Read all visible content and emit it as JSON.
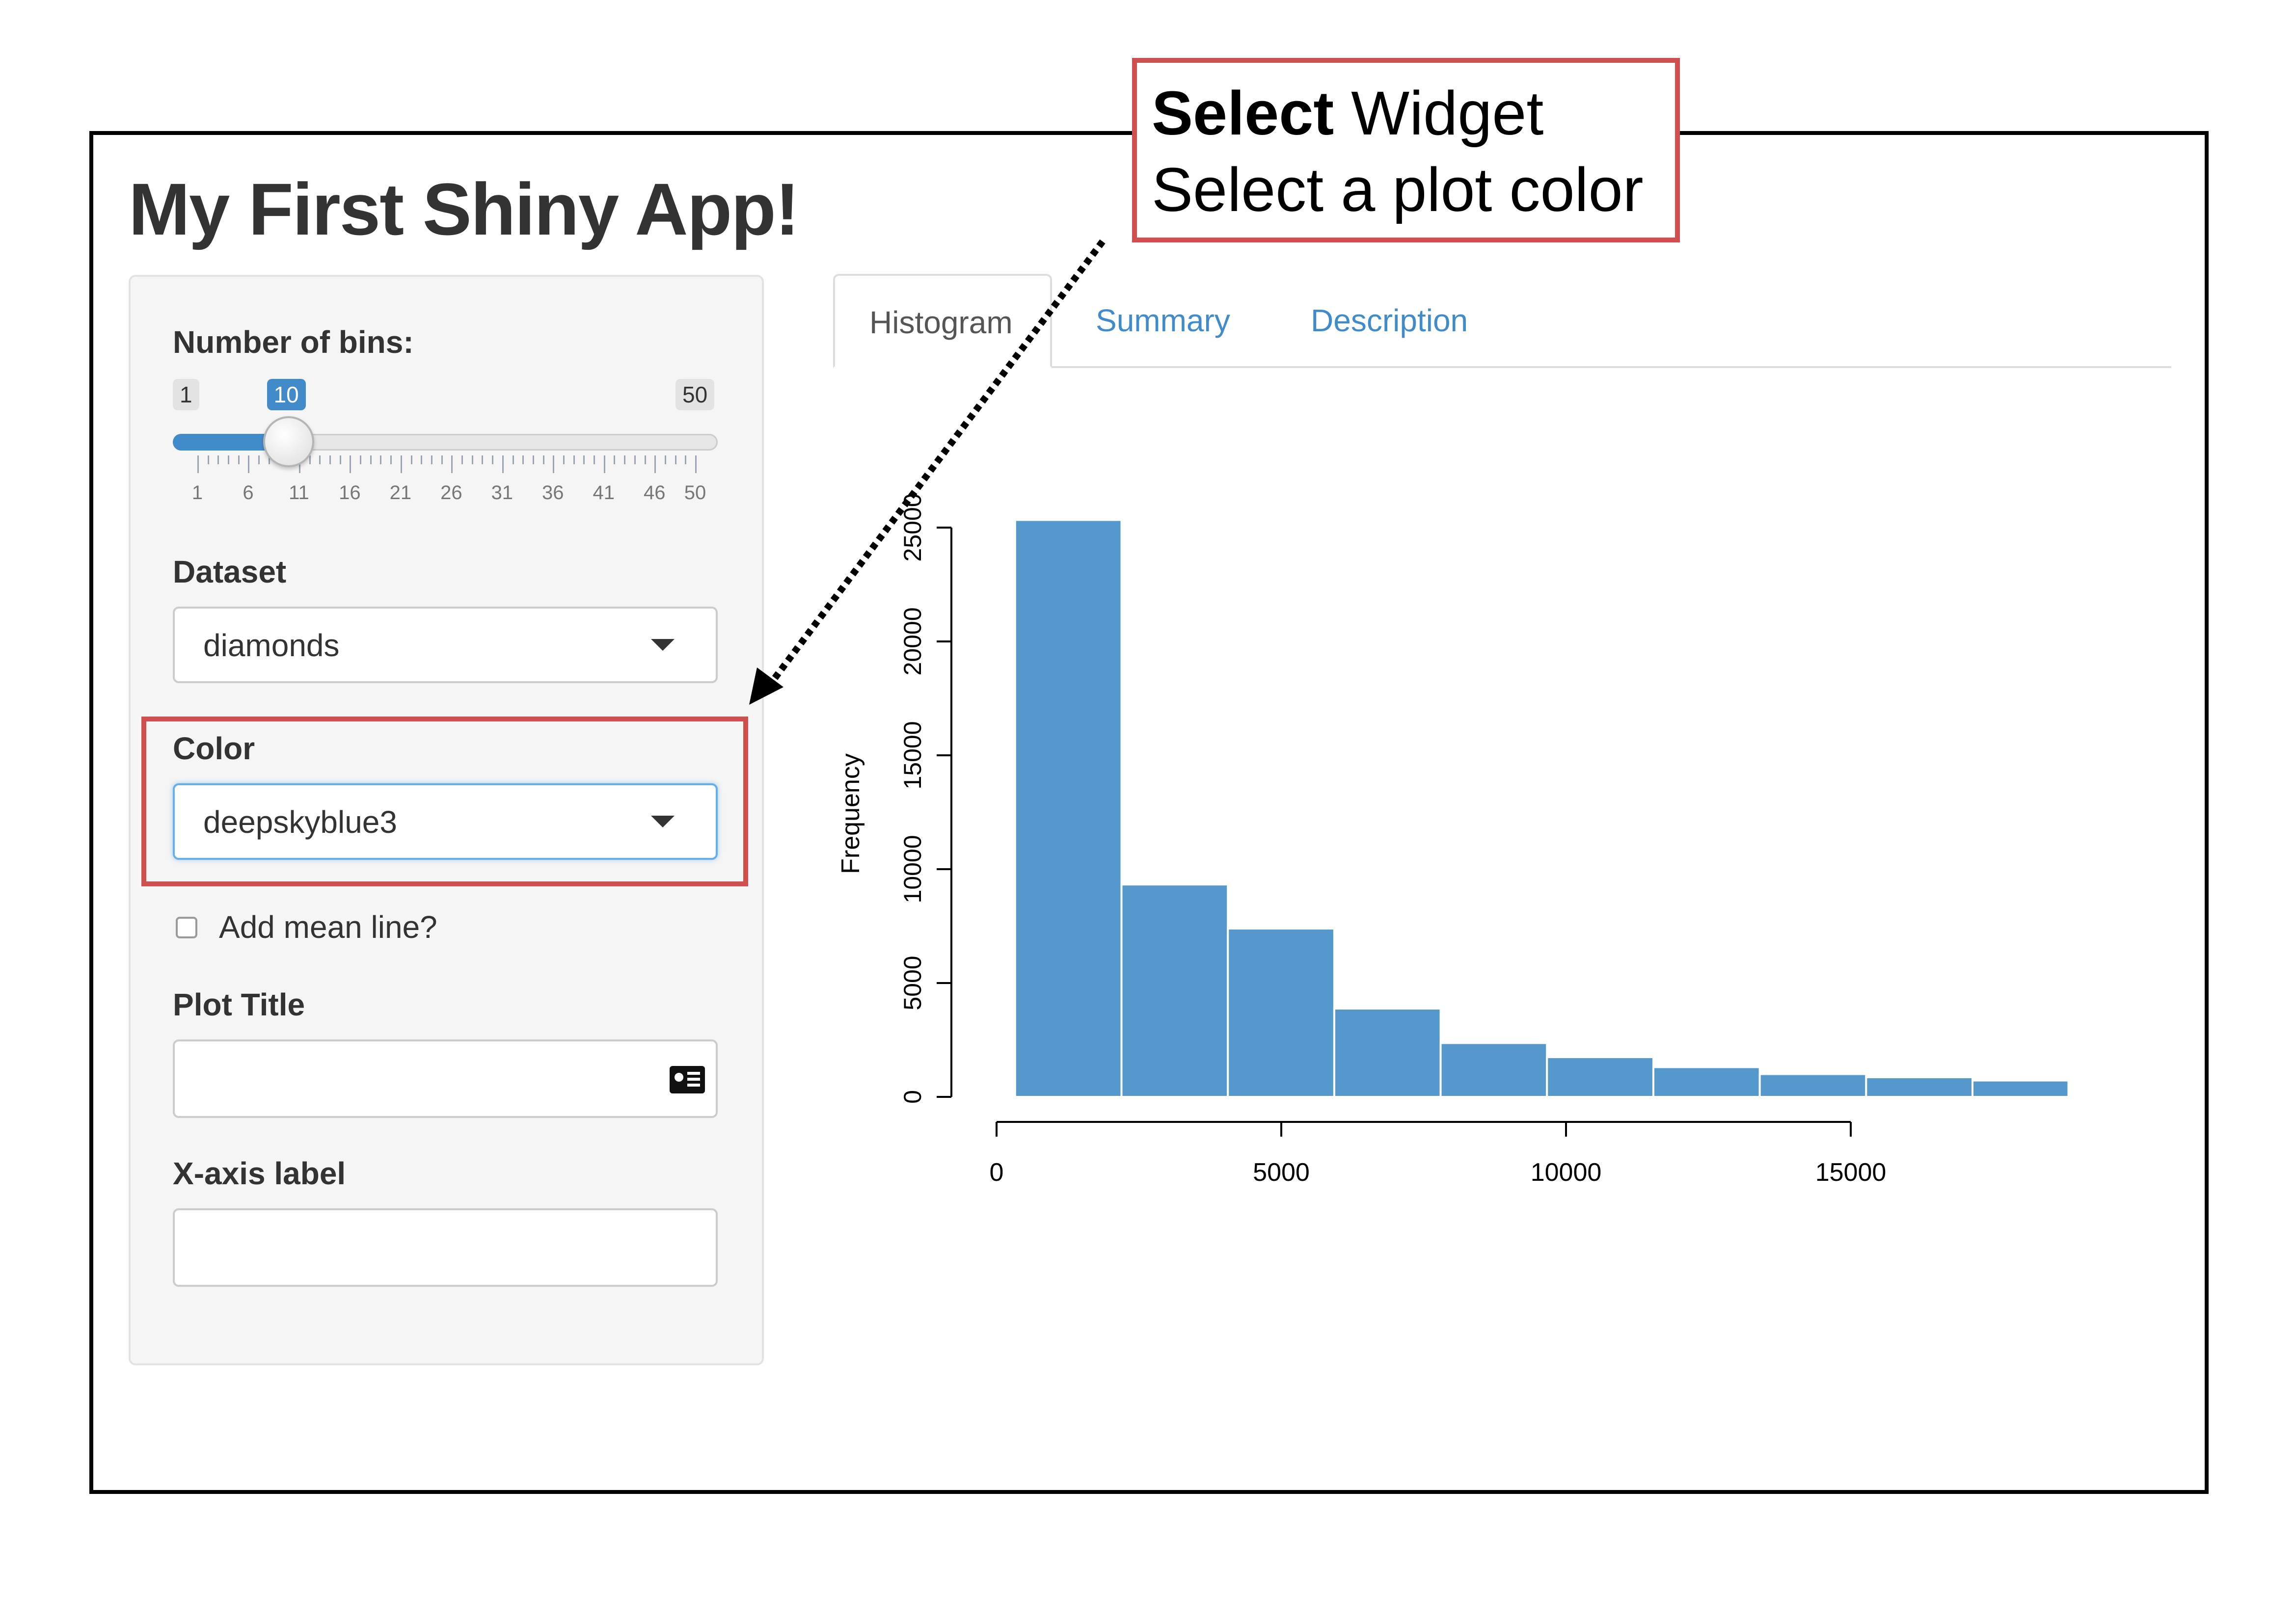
{
  "app": {
    "title": "My First Shiny App!"
  },
  "sidebar": {
    "bins": {
      "label": "Number of bins:",
      "min": "1",
      "max": "50",
      "value": "10",
      "value_fraction": 0.1837,
      "ticks": [
        "1",
        "6",
        "11",
        "16",
        "21",
        "26",
        "31",
        "36",
        "41",
        "46",
        "50"
      ]
    },
    "dataset": {
      "label": "Dataset",
      "value": "diamonds"
    },
    "color": {
      "label": "Color",
      "value": "deepskyblue3"
    },
    "mean_line": {
      "label": "Add mean line?",
      "checked": false
    },
    "plot_title": {
      "label": "Plot Title",
      "value": ""
    },
    "x_label": {
      "label": "X-axis label",
      "value": ""
    }
  },
  "tabs": [
    "Histogram",
    "Summary",
    "Description"
  ],
  "active_tab": "Histogram",
  "callout": {
    "bold": "Select",
    "rest": " Widget",
    "line2": "Select a plot color",
    "border_color": "#d0504f"
  },
  "icons": {
    "dropdown": "caret-down-icon",
    "contact": "contact-card-icon",
    "pointer": "dotted-arrow-icon"
  },
  "colors": {
    "bar": "#5599cc",
    "accent": "#428bca",
    "highlight": "#d0504f"
  },
  "chart_data": {
    "type": "bar",
    "title": "",
    "xlabel": "",
    "ylabel": "Frequency",
    "bin_edges": [
      326,
      2194,
      4062,
      5930,
      7798,
      9666,
      11534,
      13402,
      15270,
      17138,
      18823
    ],
    "values": [
      25335,
      9328,
      7393,
      3878,
      2364,
      1745,
      1306,
      1002,
      863,
      720
    ],
    "xlim": [
      0,
      18823
    ],
    "ylim": [
      0,
      25000
    ],
    "xticks": [
      "0",
      "5000",
      "10000",
      "15000"
    ],
    "yticks": [
      "0",
      "5000",
      "10000",
      "15000",
      "20000",
      "25000"
    ]
  }
}
